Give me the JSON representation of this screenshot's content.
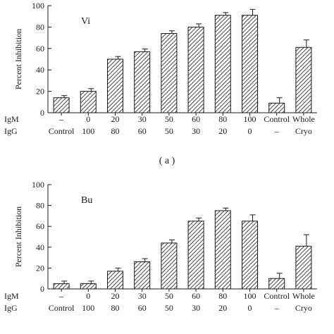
{
  "chart_data": [
    {
      "type": "bar",
      "panel_label": "Vi",
      "subcaption": "( a )",
      "ylabel": "Percent Inhibition",
      "ylim": [
        0,
        100
      ],
      "yticks": [
        0,
        20,
        40,
        60,
        80,
        100
      ],
      "row_labels": [
        "IgM",
        "IgG"
      ],
      "categories": [
        {
          "igm": "–",
          "igg": "Control"
        },
        {
          "igm": "0",
          "igg": "100"
        },
        {
          "igm": "20",
          "igg": "80"
        },
        {
          "igm": "30",
          "igg": "60"
        },
        {
          "igm": "50",
          "igg": "50"
        },
        {
          "igm": "60",
          "igg": "30"
        },
        {
          "igm": "80",
          "igg": "20"
        },
        {
          "igm": "100",
          "igg": "0"
        },
        {
          "igm": "Control",
          "igg": "–"
        },
        {
          "igm": "Whole",
          "igg": "Cryo"
        }
      ],
      "values": [
        14,
        20,
        50,
        57,
        74,
        80,
        91,
        91,
        9,
        61
      ],
      "errors": [
        2,
        2.5,
        2.5,
        2.5,
        2.5,
        3,
        2.5,
        5.5,
        5,
        7
      ]
    },
    {
      "type": "bar",
      "panel_label": "Bu",
      "subcaption": "",
      "ylabel": "Percent Inhibition",
      "ylim": [
        0,
        100
      ],
      "yticks": [
        0,
        20,
        40,
        60,
        80,
        100
      ],
      "row_labels": [
        "IgM",
        "IgG"
      ],
      "categories": [
        {
          "igm": "–",
          "igg": "Control"
        },
        {
          "igm": "0",
          "igg": "100"
        },
        {
          "igm": "20",
          "igg": "80"
        },
        {
          "igm": "30",
          "igg": "60"
        },
        {
          "igm": "50",
          "igg": "50"
        },
        {
          "igm": "60",
          "igg": "30"
        },
        {
          "igm": "80",
          "igg": "20"
        },
        {
          "igm": "100",
          "igg": "0"
        },
        {
          "igm": "Control",
          "igg": "–"
        },
        {
          "igm": "Whole",
          "igg": "Cryo"
        }
      ],
      "values": [
        5,
        5,
        17,
        26,
        44,
        65,
        75,
        65,
        10,
        41
      ],
      "errors": [
        2.5,
        2.5,
        3,
        3,
        3,
        3,
        2.5,
        6,
        5,
        11
      ]
    }
  ]
}
